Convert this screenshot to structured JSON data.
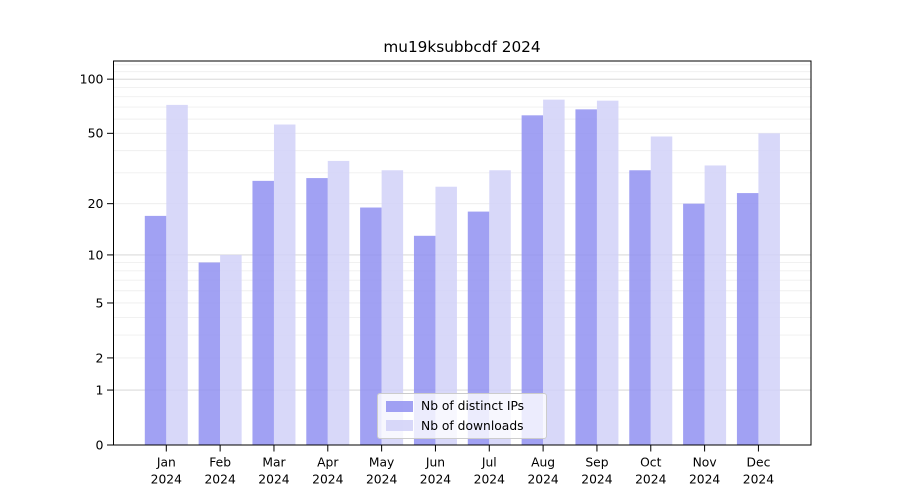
{
  "chart_data": {
    "type": "bar",
    "title": "mu19ksubbcdf 2024",
    "categories": [
      "Jan",
      "Feb",
      "Mar",
      "Apr",
      "May",
      "Jun",
      "Jul",
      "Aug",
      "Sep",
      "Oct",
      "Nov",
      "Dec"
    ],
    "x_year_suffix": "2024",
    "series": [
      {
        "name": "Nb of distinct IPs",
        "color": "#9191f1",
        "values": [
          17,
          9,
          27,
          28,
          19,
          13,
          18,
          63,
          68,
          31,
          20,
          23
        ]
      },
      {
        "name": "Nb of downloads",
        "color": "#d1d1f8",
        "values": [
          72,
          10,
          56,
          35,
          31,
          25,
          31,
          77,
          76,
          48,
          33,
          50
        ]
      }
    ],
    "yscale": "log1p",
    "yticks": [
      0,
      1,
      2,
      5,
      10,
      20,
      50,
      100
    ],
    "ylim": [
      0,
      126
    ],
    "xlabel": "",
    "ylabel": "",
    "grid": true,
    "legend_position": "lower center"
  },
  "colors": {
    "background": "#ffffff",
    "axis": "#000000",
    "grid_major": "#d2d2d2",
    "grid_minor": "#efefef",
    "bar_ips": "#9191f1",
    "bar_downloads": "#d1d1f8"
  }
}
